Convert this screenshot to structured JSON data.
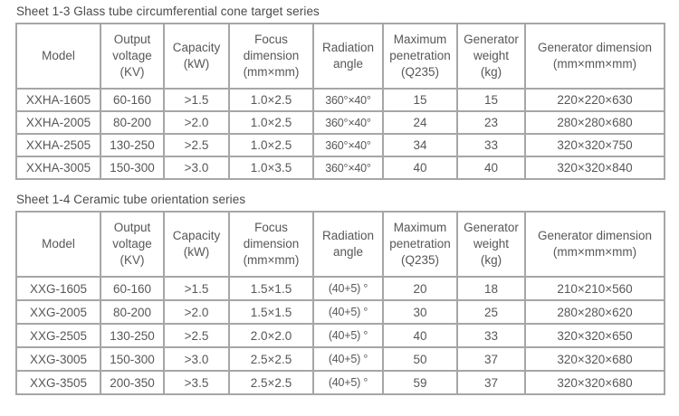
{
  "page": {
    "background": "#ffffff",
    "border_color": "#a6a6a6",
    "text_color": "#575757",
    "title_color": "#4a4a4a"
  },
  "tables": [
    {
      "title": "Sheet 1-3 Glass tube circumferential cone target series",
      "headers": [
        "Model",
        "Output\nvoltage\n(KV)",
        "Capacity\n(kW)",
        "Focus\ndimension\n(mm×mm)",
        "Radiation\nangle",
        "Maximum\npenetration\n(Q235)",
        "Generator\nweight\n(kg)",
        "Generator dimension\n(mm×mm×mm)"
      ],
      "rows": [
        [
          "XXHA-1605",
          "60-160",
          ">1.5",
          "1.0×2.5",
          "360°×40°",
          "15",
          "15",
          "220×220×630"
        ],
        [
          "XXHA-2005",
          "80-200",
          ">2.0",
          "1.0×2.5",
          "360°×40°",
          "24",
          "23",
          "280×280×680"
        ],
        [
          "XXHA-2505",
          "130-250",
          ">2.5",
          "1.0×2.5",
          "360°×40°",
          "34",
          "33",
          "320×320×750"
        ],
        [
          "XXHA-3005",
          "150-300",
          ">3.0",
          "1.0×3.5",
          "360°×40°",
          "40",
          "40",
          "320×320×840"
        ]
      ]
    },
    {
      "title": "Sheet 1-4 Ceramic tube orientation series",
      "headers": [
        "Model",
        "Output\nvoltage\n(KV)",
        "Capacity\n(kW)",
        "Focus\ndimension\n(mm×mm)",
        "Radiation\nangle",
        "Maximum\npenetration\n(Q235)",
        "Generator\nweight\n(kg)",
        "Generator dimension\n(mm×mm×mm)"
      ],
      "rows": [
        [
          "XXG-1605",
          "60-160",
          ">1.5",
          "1.5×1.5",
          "(40+5) °",
          "20",
          "18",
          "210×210×560"
        ],
        [
          "XXG-2005",
          "80-200",
          ">2.0",
          "1.5×1.5",
          "(40+5) °",
          "30",
          "25",
          "280×280×620"
        ],
        [
          "XXG-2505",
          "130-250",
          ">2.5",
          "2.0×2.0",
          "(40+5) °",
          "40",
          "33",
          "320×320×650"
        ],
        [
          "XXG-3005",
          "150-300",
          ">3.0",
          "2.5×2.5",
          "(40+5) °",
          "50",
          "37",
          "320×320×680"
        ],
        [
          "XXG-3505",
          "200-350",
          ">3.5",
          "2.5×2.5",
          "(40+5) °",
          "59",
          "37",
          "320×320×680"
        ]
      ]
    }
  ]
}
